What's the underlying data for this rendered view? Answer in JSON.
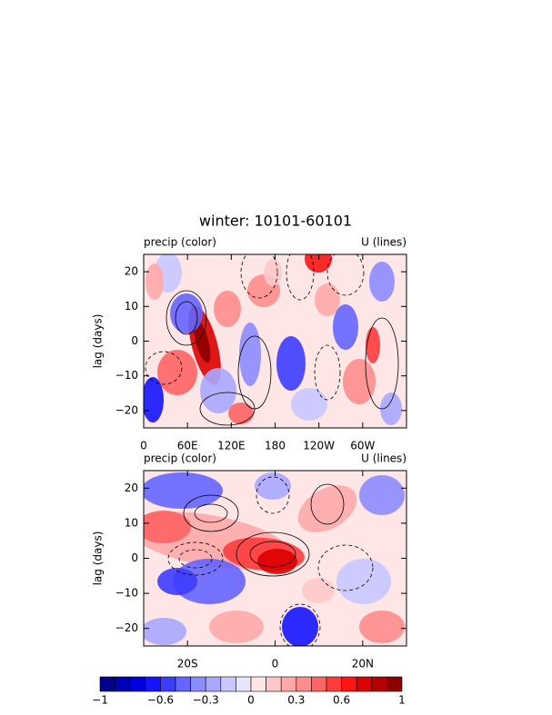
{
  "title": "winter: 10101-60101",
  "chart_data": [
    {
      "type": "contour",
      "subtitle_left": "precip (color)",
      "subtitle_right": "U (lines)",
      "ylabel": "lag (days)",
      "xlim": [
        0,
        360
      ],
      "xticks": [
        0,
        {
          "value": 60,
          "label": "60E"
        },
        {
          "value": 120,
          "label": "120E"
        },
        180,
        {
          "value": 240,
          "label": "120W"
        },
        {
          "value": 300,
          "label": "60W"
        }
      ],
      "ylim": [
        -25,
        25
      ],
      "yticks": [
        20,
        10,
        0,
        {
          "value": -10,
          "label": "−10"
        },
        {
          "value": -20,
          "label": "−20"
        }
      ]
    },
    {
      "type": "contour",
      "subtitle_left": "precip (color)",
      "subtitle_right": "U (lines)",
      "ylabel": "lag (days)",
      "xlim": [
        -30,
        30
      ],
      "xticks": [
        {
          "value": -20,
          "label": "20S"
        },
        0,
        {
          "value": 20,
          "label": "20N"
        }
      ],
      "ylim": [
        -25,
        25
      ],
      "yticks": [
        20,
        10,
        0,
        {
          "value": -10,
          "label": "−10"
        },
        {
          "value": -20,
          "label": "−20"
        }
      ]
    }
  ],
  "colorbar": {
    "levels": [
      -1,
      -0.9,
      -0.8,
      -0.7,
      -0.6,
      -0.5,
      -0.4,
      -0.3,
      -0.2,
      -0.1,
      0,
      0.1,
      0.2,
      0.3,
      0.4,
      0.5,
      0.6,
      0.7,
      0.8,
      0.9,
      1
    ],
    "colors": [
      "#00008c",
      "#0000b4",
      "#0000dc",
      "#1414ff",
      "#3c3cff",
      "#6464ff",
      "#8c8cff",
      "#a8a8ff",
      "#c8c8ff",
      "#e6e6ff",
      "#ffe6e6",
      "#ffc8c8",
      "#ffa8a8",
      "#ff8c8c",
      "#ff6464",
      "#ff3c3c",
      "#ff1414",
      "#dc0000",
      "#b40000",
      "#8c0000"
    ],
    "ticks": [
      {
        "value": -1,
        "label": "−1"
      },
      {
        "value": -0.6,
        "label": "−0.6"
      },
      {
        "value": -0.3,
        "label": "−0.3"
      },
      0,
      0.3,
      0.6,
      1
    ]
  }
}
